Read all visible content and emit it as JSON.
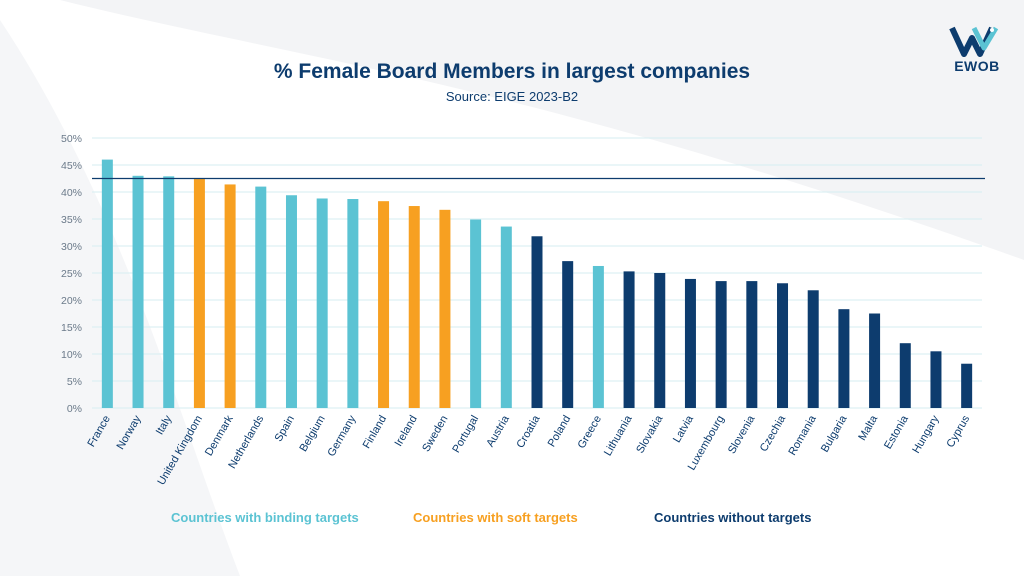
{
  "header": {
    "title": "% Female Board Members in largest companies",
    "subtitle": "Source:  EIGE 2023-B2",
    "logo_text": "EWOB"
  },
  "colors": {
    "binding": "#5bc3d3",
    "soft": "#f7a021",
    "none": "#0d3c6e",
    "grid": "#d6eef2",
    "average_line": "#0d3c6e",
    "axis_text": "#6b7a8a"
  },
  "legend": {
    "binding": "Countries with binding targets",
    "soft": "Countries with soft targets",
    "none": "Countries without targets"
  },
  "chart_data": {
    "type": "bar",
    "title": "% Female Board Members in largest companies",
    "subtitle": "Source:  EIGE 2023-B2",
    "xlabel": "",
    "ylabel": "",
    "ylim": [
      0,
      50
    ],
    "yticks": [
      0,
      5,
      10,
      15,
      20,
      25,
      30,
      35,
      40,
      45,
      50
    ],
    "ytick_labels": [
      "0%",
      "5%",
      "10%",
      "15%",
      "20%",
      "25%",
      "30%",
      "35%",
      "40%",
      "45%",
      "50%"
    ],
    "grid": true,
    "legend_placement": "bottom",
    "reference_line": 42.5,
    "categories": [
      "France",
      "Norway",
      "Italy",
      "United Kingdom",
      "Denmark",
      "Netherlands",
      "Spain",
      "Belgium",
      "Germany",
      "Finland",
      "Ireland",
      "Sweden",
      "Portugal",
      "Austria",
      "Croatia",
      "Poland",
      "Greece",
      "Lithuania",
      "Slovakia",
      "Latvia",
      "Luxembourg",
      "Slovenia",
      "Czechia",
      "Romania",
      "Bulgaria",
      "Malta",
      "Estonia",
      "Hungary",
      "Cyprus"
    ],
    "values": [
      46,
      43,
      42.9,
      42.4,
      41.4,
      41,
      39.4,
      38.8,
      38.7,
      38.3,
      37.4,
      36.7,
      34.9,
      33.6,
      31.8,
      27.2,
      26.3,
      25.3,
      25,
      23.9,
      23.5,
      23.5,
      23.1,
      21.8,
      18.3,
      17.5,
      12,
      10.5,
      8.2
    ],
    "target_type": [
      "binding",
      "binding",
      "binding",
      "soft",
      "soft",
      "binding",
      "binding",
      "binding",
      "binding",
      "soft",
      "soft",
      "soft",
      "binding",
      "binding",
      "none",
      "none",
      "binding",
      "none",
      "none",
      "none",
      "none",
      "none",
      "none",
      "none",
      "none",
      "none",
      "none",
      "none",
      "none"
    ],
    "series": [
      {
        "name": "Countries with binding targets",
        "key": "binding"
      },
      {
        "name": "Countries with soft targets",
        "key": "soft"
      },
      {
        "name": "Countries without targets",
        "key": "none"
      }
    ]
  }
}
